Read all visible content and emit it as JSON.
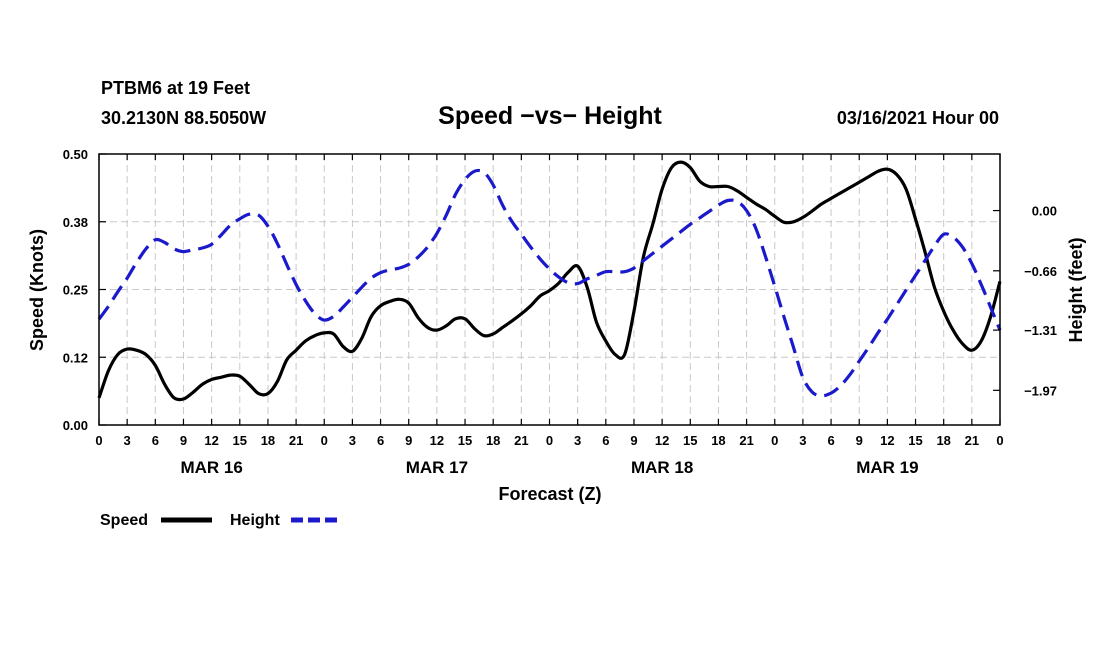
{
  "header": {
    "station": "PTBM6 at 19 Feet",
    "location": "30.2130N 88.5050W",
    "title": "Speed −vs− Height",
    "datetime": "03/16/2021 Hour 00"
  },
  "colors": {
    "speed": "#000000",
    "height": "#1a1acc",
    "grid": "#c8c8c8",
    "axis": "#000000"
  },
  "chart_data": {
    "type": "line",
    "title": "Speed −vs− Height",
    "xlabel": "Forecast (Z)",
    "ylabel": "Speed (Knots)",
    "y2label": "Height (feet)",
    "x_unit": "hours from 03/16/2021 00Z",
    "xlim": [
      0,
      96
    ],
    "ylim": [
      0,
      0.5
    ],
    "y2lim": [
      -2.35,
      0.62
    ],
    "grid": true,
    "legend_position": "bottom-left",
    "x_ticks": [
      {
        "x": 0,
        "label": "0"
      },
      {
        "x": 3,
        "label": "3"
      },
      {
        "x": 6,
        "label": "6"
      },
      {
        "x": 9,
        "label": "9"
      },
      {
        "x": 12,
        "label": "12"
      },
      {
        "x": 15,
        "label": "15"
      },
      {
        "x": 18,
        "label": "18"
      },
      {
        "x": 21,
        "label": "21"
      },
      {
        "x": 24,
        "label": "0"
      },
      {
        "x": 27,
        "label": "3"
      },
      {
        "x": 30,
        "label": "6"
      },
      {
        "x": 33,
        "label": "9"
      },
      {
        "x": 36,
        "label": "12"
      },
      {
        "x": 39,
        "label": "15"
      },
      {
        "x": 42,
        "label": "18"
      },
      {
        "x": 45,
        "label": "21"
      },
      {
        "x": 48,
        "label": "0"
      },
      {
        "x": 51,
        "label": "3"
      },
      {
        "x": 54,
        "label": "6"
      },
      {
        "x": 57,
        "label": "9"
      },
      {
        "x": 60,
        "label": "12"
      },
      {
        "x": 63,
        "label": "15"
      },
      {
        "x": 66,
        "label": "18"
      },
      {
        "x": 69,
        "label": "21"
      },
      {
        "x": 72,
        "label": "0"
      },
      {
        "x": 75,
        "label": "3"
      },
      {
        "x": 78,
        "label": "6"
      },
      {
        "x": 81,
        "label": "9"
      },
      {
        "x": 84,
        "label": "12"
      },
      {
        "x": 87,
        "label": "15"
      },
      {
        "x": 90,
        "label": "18"
      },
      {
        "x": 93,
        "label": "21"
      },
      {
        "x": 96,
        "label": "0"
      }
    ],
    "date_labels": [
      {
        "x": 12,
        "label": "MAR 16"
      },
      {
        "x": 36,
        "label": "MAR 17"
      },
      {
        "x": 60,
        "label": "MAR 18"
      },
      {
        "x": 84,
        "label": "MAR 19"
      }
    ],
    "y_ticks": [
      {
        "y": 0.0,
        "label": "0.00"
      },
      {
        "y": 0.125,
        "label": "0.12"
      },
      {
        "y": 0.25,
        "label": "0.25"
      },
      {
        "y": 0.375,
        "label": "0.38"
      },
      {
        "y": 0.5,
        "label": "0.50"
      }
    ],
    "y2_ticks": [
      {
        "y": 0.0,
        "label": "0.00"
      },
      {
        "y": -0.66,
        "label": "−0.66"
      },
      {
        "y": -1.31,
        "label": "−1.31"
      },
      {
        "y": -1.97,
        "label": "−1.97"
      }
    ],
    "series": [
      {
        "name": "Speed",
        "axis": "left",
        "style": "solid",
        "points": [
          [
            0,
            0.05
          ],
          [
            1,
            0.1
          ],
          [
            2,
            0.13
          ],
          [
            3,
            0.14
          ],
          [
            4,
            0.138
          ],
          [
            5,
            0.13
          ],
          [
            6,
            0.11
          ],
          [
            7,
            0.075
          ],
          [
            8,
            0.05
          ],
          [
            9,
            0.048
          ],
          [
            10,
            0.06
          ],
          [
            11,
            0.075
          ],
          [
            12,
            0.084
          ],
          [
            13,
            0.088
          ],
          [
            14,
            0.092
          ],
          [
            15,
            0.09
          ],
          [
            16,
            0.075
          ],
          [
            17,
            0.058
          ],
          [
            18,
            0.058
          ],
          [
            19,
            0.08
          ],
          [
            20,
            0.12
          ],
          [
            21,
            0.138
          ],
          [
            22,
            0.155
          ],
          [
            23,
            0.165
          ],
          [
            24,
            0.17
          ],
          [
            25,
            0.168
          ],
          [
            26,
            0.145
          ],
          [
            27,
            0.136
          ],
          [
            28,
            0.16
          ],
          [
            29,
            0.2
          ],
          [
            30,
            0.22
          ],
          [
            31,
            0.228
          ],
          [
            32,
            0.232
          ],
          [
            33,
            0.225
          ],
          [
            34,
            0.198
          ],
          [
            35,
            0.18
          ],
          [
            36,
            0.175
          ],
          [
            37,
            0.183
          ],
          [
            38,
            0.196
          ],
          [
            39,
            0.196
          ],
          [
            40,
            0.178
          ],
          [
            41,
            0.165
          ],
          [
            42,
            0.168
          ],
          [
            43,
            0.18
          ],
          [
            44,
            0.192
          ],
          [
            45,
            0.205
          ],
          [
            46,
            0.22
          ],
          [
            47,
            0.238
          ],
          [
            48,
            0.248
          ],
          [
            49,
            0.262
          ],
          [
            50,
            0.282
          ],
          [
            51,
            0.293
          ],
          [
            52,
            0.255
          ],
          [
            53,
            0.19
          ],
          [
            54,
            0.155
          ],
          [
            55,
            0.13
          ],
          [
            56,
            0.13
          ],
          [
            57,
            0.21
          ],
          [
            58,
            0.31
          ],
          [
            59,
            0.37
          ],
          [
            60,
            0.435
          ],
          [
            61,
            0.475
          ],
          [
            62,
            0.485
          ],
          [
            63,
            0.475
          ],
          [
            64,
            0.45
          ],
          [
            65,
            0.44
          ],
          [
            66,
            0.44
          ],
          [
            67,
            0.44
          ],
          [
            68,
            0.432
          ],
          [
            69,
            0.42
          ],
          [
            70,
            0.408
          ],
          [
            71,
            0.398
          ],
          [
            72,
            0.385
          ],
          [
            73,
            0.374
          ],
          [
            74,
            0.375
          ],
          [
            75,
            0.383
          ],
          [
            76,
            0.395
          ],
          [
            77,
            0.408
          ],
          [
            78,
            0.418
          ],
          [
            79,
            0.428
          ],
          [
            80,
            0.438
          ],
          [
            81,
            0.448
          ],
          [
            82,
            0.458
          ],
          [
            83,
            0.468
          ],
          [
            84,
            0.472
          ],
          [
            85,
            0.462
          ],
          [
            86,
            0.435
          ],
          [
            87,
            0.38
          ],
          [
            88,
            0.32
          ],
          [
            89,
            0.255
          ],
          [
            90,
            0.21
          ],
          [
            91,
            0.175
          ],
          [
            92,
            0.15
          ],
          [
            93,
            0.138
          ],
          [
            94,
            0.155
          ],
          [
            95,
            0.2
          ],
          [
            96,
            0.265
          ]
        ]
      },
      {
        "name": "Height",
        "axis": "right",
        "style": "dashed",
        "points": [
          [
            0,
            -1.19
          ],
          [
            1,
            -1.05
          ],
          [
            2,
            -0.89
          ],
          [
            3,
            -0.74
          ],
          [
            4,
            -0.57
          ],
          [
            5,
            -0.42
          ],
          [
            6,
            -0.32
          ],
          [
            7,
            -0.35
          ],
          [
            8,
            -0.42
          ],
          [
            9,
            -0.45
          ],
          [
            10,
            -0.43
          ],
          [
            11,
            -0.41
          ],
          [
            12,
            -0.37
          ],
          [
            13,
            -0.27
          ],
          [
            14,
            -0.16
          ],
          [
            15,
            -0.09
          ],
          [
            16,
            -0.04
          ],
          [
            17,
            -0.05
          ],
          [
            18,
            -0.17
          ],
          [
            19,
            -0.36
          ],
          [
            20,
            -0.59
          ],
          [
            21,
            -0.81
          ],
          [
            22,
            -0.99
          ],
          [
            23,
            -1.13
          ],
          [
            24,
            -1.2
          ],
          [
            25,
            -1.16
          ],
          [
            26,
            -1.06
          ],
          [
            27,
            -0.95
          ],
          [
            28,
            -0.84
          ],
          [
            29,
            -0.74
          ],
          [
            30,
            -0.68
          ],
          [
            31,
            -0.65
          ],
          [
            32,
            -0.63
          ],
          [
            33,
            -0.59
          ],
          [
            34,
            -0.51
          ],
          [
            35,
            -0.4
          ],
          [
            36,
            -0.25
          ],
          [
            37,
            -0.05
          ],
          [
            38,
            0.18
          ],
          [
            39,
            0.34
          ],
          [
            40,
            0.43
          ],
          [
            41,
            0.42
          ],
          [
            42,
            0.28
          ],
          [
            43,
            0.06
          ],
          [
            44,
            -0.12
          ],
          [
            45,
            -0.26
          ],
          [
            46,
            -0.4
          ],
          [
            47,
            -0.53
          ],
          [
            48,
            -0.64
          ],
          [
            49,
            -0.73
          ],
          [
            50,
            -0.79
          ],
          [
            51,
            -0.8
          ],
          [
            52,
            -0.75
          ],
          [
            53,
            -0.71
          ],
          [
            54,
            -0.67
          ],
          [
            55,
            -0.67
          ],
          [
            56,
            -0.67
          ],
          [
            57,
            -0.63
          ],
          [
            58,
            -0.55
          ],
          [
            59,
            -0.47
          ],
          [
            60,
            -0.39
          ],
          [
            61,
            -0.31
          ],
          [
            62,
            -0.23
          ],
          [
            63,
            -0.15
          ],
          [
            64,
            -0.08
          ],
          [
            65,
            -0.01
          ],
          [
            66,
            0.06
          ],
          [
            67,
            0.11
          ],
          [
            68,
            0.1
          ],
          [
            69,
            0.0
          ],
          [
            70,
            -0.2
          ],
          [
            71,
            -0.5
          ],
          [
            72,
            -0.83
          ],
          [
            73,
            -1.17
          ],
          [
            74,
            -1.5
          ],
          [
            75,
            -1.83
          ],
          [
            76,
            -1.99
          ],
          [
            77,
            -2.03
          ],
          [
            78,
            -2.0
          ],
          [
            79,
            -1.92
          ],
          [
            80,
            -1.8
          ],
          [
            81,
            -1.65
          ],
          [
            82,
            -1.5
          ],
          [
            83,
            -1.34
          ],
          [
            84,
            -1.19
          ],
          [
            85,
            -1.03
          ],
          [
            86,
            -0.87
          ],
          [
            87,
            -0.71
          ],
          [
            88,
            -0.55
          ],
          [
            89,
            -0.39
          ],
          [
            90,
            -0.26
          ],
          [
            91,
            -0.29
          ],
          [
            92,
            -0.4
          ],
          [
            93,
            -0.58
          ],
          [
            94,
            -0.81
          ],
          [
            95,
            -1.06
          ],
          [
            96,
            -1.31
          ]
        ]
      }
    ]
  },
  "legend": [
    {
      "label": "Speed",
      "series": "Speed"
    },
    {
      "label": "Height",
      "series": "Height"
    }
  ]
}
